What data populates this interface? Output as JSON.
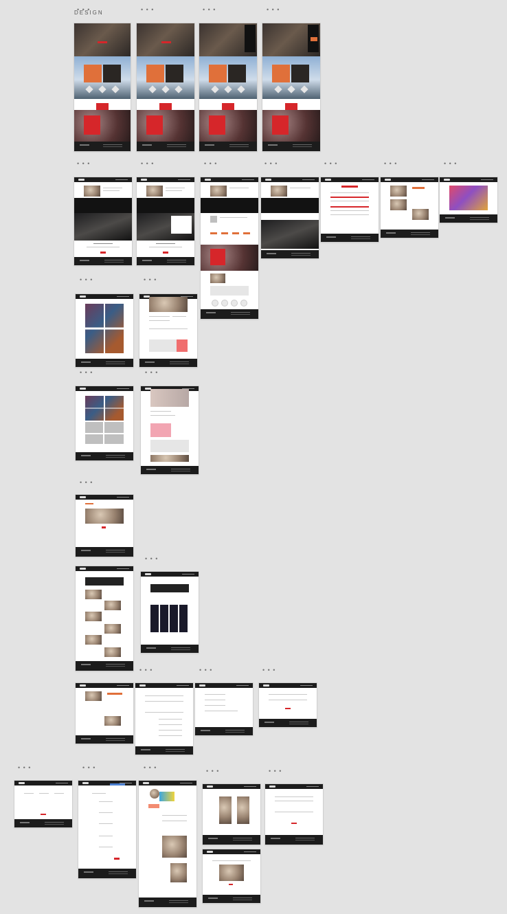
{
  "title": "DESIGN",
  "board_label": "• • •",
  "colors": {
    "background": "#e3e3e3",
    "header": "#1c1c1c",
    "accent": "#d6262a"
  }
}
